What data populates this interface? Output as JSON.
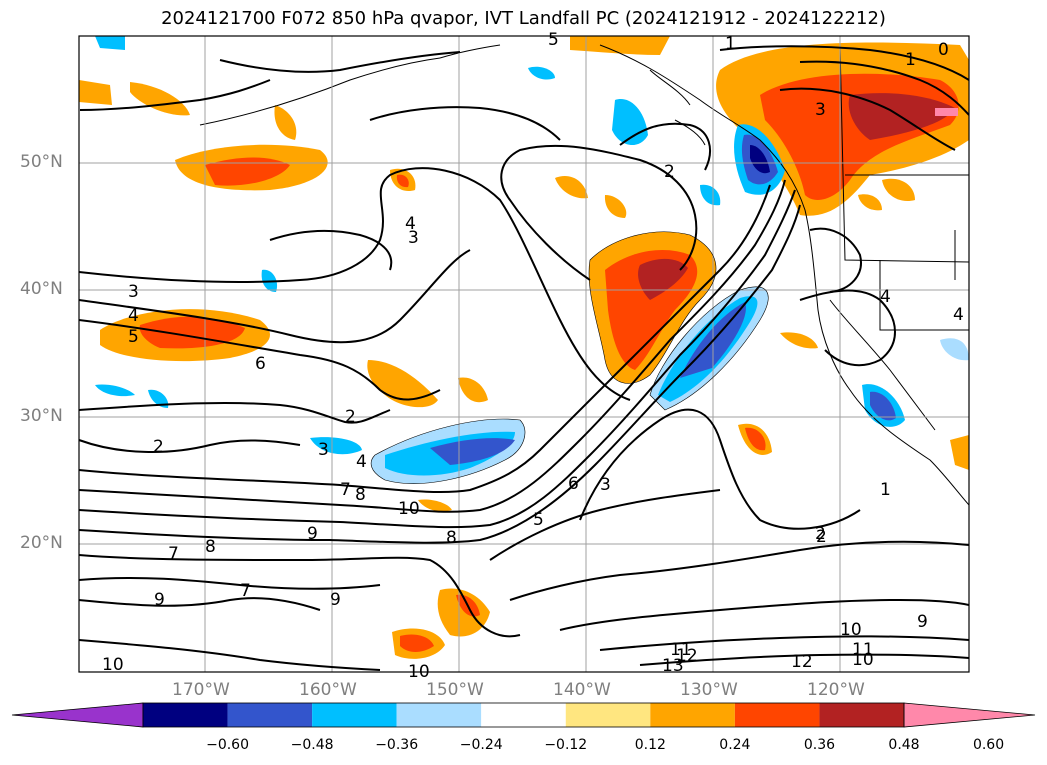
{
  "title": "2024121700 F072 850 hPa qvapor, IVT Landfall PC (2024121912 - 2024122212)",
  "lat_labels": [
    "50°N",
    "40°N",
    "30°N",
    "20°N"
  ],
  "lon_labels": [
    "170°W",
    "160°W",
    "150°W",
    "140°W",
    "130°W",
    "120°W"
  ],
  "colorbar": {
    "ticks": [
      "−0.60",
      "−0.48",
      "−0.36",
      "−0.24",
      "−0.12",
      "0.12",
      "0.24",
      "0.36",
      "0.48",
      "0.60"
    ],
    "colors": [
      "#9933cc",
      "#000080",
      "#3355cc",
      "#00bfff",
      "#aaddff",
      "#ffffff",
      "#ffe680",
      "#ffa500",
      "#ff4500",
      "#b22222",
      "#ff88aa"
    ]
  },
  "contour_labels": [
    "5",
    "1",
    "0",
    "1",
    "3",
    "2",
    "4",
    "3",
    "3",
    "4",
    "5",
    "6",
    "2",
    "2",
    "3",
    "4",
    "7",
    "8",
    "10",
    "9",
    "8",
    "7",
    "8",
    "9",
    "7",
    "9",
    "10",
    "10",
    "6",
    "3",
    "5",
    "2",
    "4",
    "4",
    "1",
    "2",
    "10",
    "9",
    "11",
    "12",
    "13",
    "12",
    "11",
    "10"
  ]
}
